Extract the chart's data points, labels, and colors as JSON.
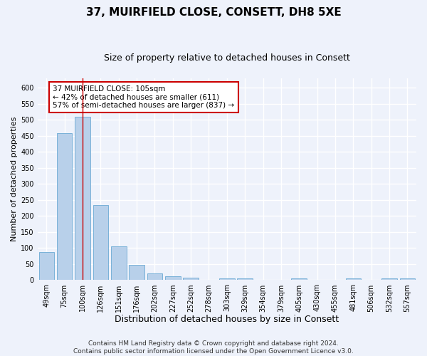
{
  "title": "37, MUIRFIELD CLOSE, CONSETT, DH8 5XE",
  "subtitle": "Size of property relative to detached houses in Consett",
  "xlabel": "Distribution of detached houses by size in Consett",
  "ylabel": "Number of detached properties",
  "categories": [
    "49sqm",
    "75sqm",
    "100sqm",
    "126sqm",
    "151sqm",
    "176sqm",
    "202sqm",
    "227sqm",
    "252sqm",
    "278sqm",
    "303sqm",
    "329sqm",
    "354sqm",
    "379sqm",
    "405sqm",
    "430sqm",
    "455sqm",
    "481sqm",
    "506sqm",
    "532sqm",
    "557sqm"
  ],
  "values": [
    88,
    458,
    510,
    235,
    105,
    47,
    20,
    13,
    8,
    0,
    5,
    5,
    0,
    0,
    5,
    0,
    0,
    5,
    0,
    5,
    5
  ],
  "bar_color": "#b8d0ea",
  "bar_edge_color": "#6aaad4",
  "vline_x": 2,
  "vline_color": "#cc0000",
  "annotation_text": "37 MUIRFIELD CLOSE: 105sqm\n← 42% of detached houses are smaller (611)\n57% of semi-detached houses are larger (837) →",
  "annotation_box_color": "#ffffff",
  "annotation_box_edge": "#cc0000",
  "ylim": [
    0,
    630
  ],
  "yticks": [
    0,
    50,
    100,
    150,
    200,
    250,
    300,
    350,
    400,
    450,
    500,
    550,
    600
  ],
  "footer": "Contains HM Land Registry data © Crown copyright and database right 2024.\nContains public sector information licensed under the Open Government Licence v3.0.",
  "background_color": "#eef2fb",
  "grid_color": "#ffffff",
  "title_fontsize": 11,
  "subtitle_fontsize": 9,
  "xlabel_fontsize": 9,
  "ylabel_fontsize": 8,
  "tick_fontsize": 7,
  "footer_fontsize": 6.5,
  "annot_fontsize": 7.5
}
